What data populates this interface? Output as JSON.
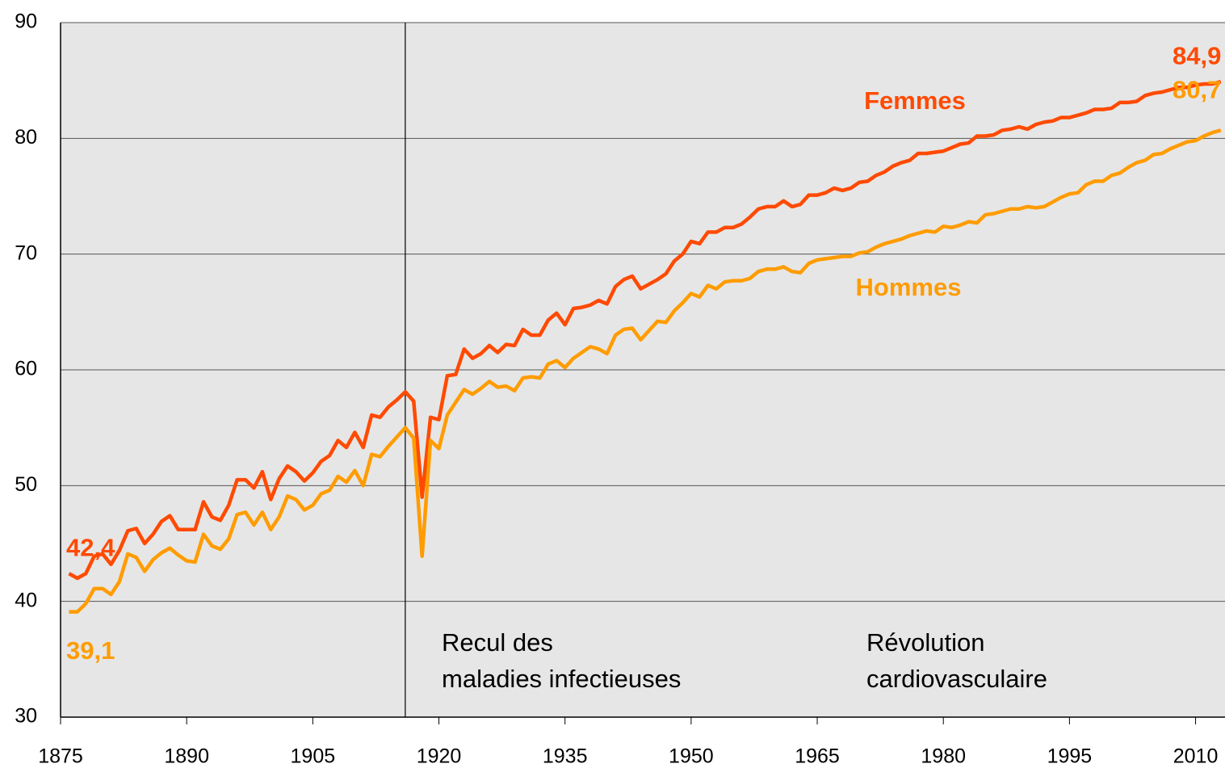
{
  "chart_data": {
    "type": "line",
    "x": [
      1876,
      1877,
      1878,
      1879,
      1880,
      1881,
      1882,
      1883,
      1884,
      1885,
      1886,
      1887,
      1888,
      1889,
      1890,
      1891,
      1892,
      1893,
      1894,
      1895,
      1896,
      1897,
      1898,
      1899,
      1900,
      1901,
      1902,
      1903,
      1904,
      1905,
      1906,
      1907,
      1908,
      1909,
      1910,
      1911,
      1912,
      1913,
      1914,
      1915,
      1916,
      1917,
      1918,
      1919,
      1920,
      1921,
      1922,
      1923,
      1924,
      1925,
      1926,
      1927,
      1928,
      1929,
      1930,
      1931,
      1932,
      1933,
      1934,
      1935,
      1936,
      1937,
      1938,
      1939,
      1940,
      1941,
      1942,
      1943,
      1944,
      1945,
      1946,
      1947,
      1948,
      1949,
      1950,
      1951,
      1952,
      1953,
      1954,
      1955,
      1956,
      1957,
      1958,
      1959,
      1960,
      1961,
      1962,
      1963,
      1964,
      1965,
      1966,
      1967,
      1968,
      1969,
      1970,
      1971,
      1972,
      1973,
      1974,
      1975,
      1976,
      1977,
      1978,
      1979,
      1980,
      1981,
      1982,
      1983,
      1984,
      1985,
      1986,
      1987,
      1988,
      1989,
      1990,
      1991,
      1992,
      1993,
      1994,
      1995,
      1996,
      1997,
      1998,
      1999,
      2000,
      2001,
      2002,
      2003,
      2004,
      2005,
      2006,
      2007,
      2008,
      2009,
      2010,
      2011,
      2012,
      2013
    ],
    "series": [
      {
        "name": "Femmes",
        "color": "#ff4a00",
        "values": [
          42.4,
          42.0,
          42.4,
          43.9,
          44.1,
          43.2,
          44.4,
          46.1,
          46.3,
          45.0,
          45.8,
          46.9,
          47.4,
          46.2,
          46.2,
          46.2,
          48.6,
          47.3,
          47.0,
          48.3,
          50.5,
          50.5,
          49.8,
          51.2,
          48.8,
          50.6,
          51.7,
          51.2,
          50.4,
          51.1,
          52.1,
          52.6,
          53.9,
          53.3,
          54.6,
          53.3,
          56.1,
          55.9,
          56.8,
          57.4,
          58.1,
          57.3,
          49.0,
          55.9,
          55.7,
          59.5,
          59.6,
          61.8,
          61.0,
          61.4,
          62.1,
          61.5,
          62.2,
          62.1,
          63.5,
          63.0,
          63.0,
          64.3,
          64.9,
          63.9,
          65.3,
          65.4,
          65.6,
          66.0,
          65.7,
          67.2,
          67.8,
          68.1,
          67.0,
          67.4,
          67.8,
          68.3,
          69.4,
          70.0,
          71.1,
          70.9,
          71.9,
          71.9,
          72.3,
          72.3,
          72.6,
          73.2,
          73.9,
          74.1,
          74.1,
          74.6,
          74.1,
          74.3,
          75.1,
          75.1,
          75.3,
          75.7,
          75.5,
          75.7,
          76.2,
          76.3,
          76.8,
          77.1,
          77.6,
          77.9,
          78.1,
          78.7,
          78.7,
          78.8,
          78.9,
          79.2,
          79.5,
          79.6,
          80.2,
          80.2,
          80.3,
          80.7,
          80.8,
          81.0,
          80.8,
          81.2,
          81.4,
          81.5,
          81.8,
          81.8,
          82.0,
          82.2,
          82.5,
          82.5,
          82.6,
          83.1,
          83.1,
          83.2,
          83.7,
          83.9,
          84.0,
          84.2,
          84.4,
          84.4,
          84.6,
          84.7,
          84.7,
          84.9
        ],
        "value_labels": [
          "42,4",
          null,
          null,
          null,
          null,
          null,
          null,
          null,
          null,
          null,
          null,
          null,
          null,
          null,
          null,
          null,
          null,
          null,
          null,
          null,
          null,
          null,
          null,
          null,
          null,
          null,
          null,
          null,
          null,
          null,
          null,
          null,
          null,
          null,
          null,
          null,
          null,
          null,
          null,
          null,
          null,
          null,
          null,
          null,
          null,
          null,
          null,
          null,
          null,
          null,
          null,
          null,
          null,
          null,
          null,
          null,
          null,
          null,
          null,
          null,
          null,
          null,
          null,
          null,
          null,
          null,
          null,
          null,
          null,
          null,
          null,
          null,
          null,
          null,
          null,
          null,
          null,
          null,
          null,
          null,
          null,
          null,
          null,
          null,
          null,
          null,
          null,
          null,
          null,
          null,
          null,
          null,
          null,
          null,
          null,
          null,
          null,
          null,
          null,
          null,
          null,
          null,
          null,
          null,
          null,
          null,
          null,
          null,
          null,
          null,
          null,
          null,
          null,
          null,
          null,
          null,
          null,
          null,
          null,
          null,
          null,
          null,
          null,
          null,
          null,
          null,
          null,
          null,
          null,
          null,
          null,
          null,
          null,
          null,
          null,
          null,
          null,
          "84,9"
        ]
      },
      {
        "name": "Hommes",
        "color": "#ff9c00",
        "values": [
          39.1,
          39.1,
          39.8,
          41.1,
          41.1,
          40.6,
          41.7,
          44.1,
          43.8,
          42.6,
          43.6,
          44.2,
          44.6,
          44.0,
          43.5,
          43.4,
          45.8,
          44.8,
          44.5,
          45.4,
          47.5,
          47.7,
          46.6,
          47.7,
          46.2,
          47.3,
          49.1,
          48.8,
          47.9,
          48.3,
          49.3,
          49.6,
          50.8,
          50.3,
          51.3,
          50.0,
          52.7,
          52.5,
          53.4,
          54.2,
          55.0,
          54.1,
          43.9,
          53.9,
          53.2,
          56.1,
          57.2,
          58.3,
          57.9,
          58.4,
          59.0,
          58.5,
          58.6,
          58.2,
          59.3,
          59.4,
          59.3,
          60.5,
          60.8,
          60.2,
          61.0,
          61.5,
          62.0,
          61.8,
          61.4,
          63.0,
          63.5,
          63.6,
          62.6,
          63.4,
          64.2,
          64.1,
          65.1,
          65.8,
          66.6,
          66.3,
          67.3,
          67.0,
          67.6,
          67.7,
          67.7,
          67.9,
          68.5,
          68.7,
          68.7,
          68.9,
          68.5,
          68.4,
          69.2,
          69.5,
          69.6,
          69.7,
          69.8,
          69.8,
          70.1,
          70.2,
          70.6,
          70.9,
          71.1,
          71.3,
          71.6,
          71.8,
          72.0,
          71.9,
          72.4,
          72.3,
          72.5,
          72.8,
          72.7,
          73.4,
          73.5,
          73.7,
          73.9,
          73.9,
          74.1,
          74.0,
          74.1,
          74.5,
          74.9,
          75.2,
          75.3,
          76.0,
          76.3,
          76.3,
          76.8,
          77.0,
          77.5,
          77.9,
          78.1,
          78.6,
          78.7,
          79.1,
          79.4,
          79.7,
          79.8,
          80.2,
          80.5,
          80.7
        ],
        "value_labels": [
          "39,1",
          null,
          null,
          null,
          null,
          null,
          null,
          null,
          null,
          null,
          null,
          null,
          null,
          null,
          null,
          null,
          null,
          null,
          null,
          null,
          null,
          null,
          null,
          null,
          null,
          null,
          null,
          null,
          null,
          null,
          null,
          null,
          null,
          null,
          null,
          null,
          null,
          null,
          null,
          null,
          null,
          null,
          null,
          null,
          null,
          null,
          null,
          null,
          null,
          null,
          null,
          null,
          null,
          null,
          null,
          null,
          null,
          null,
          null,
          null,
          null,
          null,
          null,
          null,
          null,
          null,
          null,
          null,
          null,
          null,
          null,
          null,
          null,
          null,
          null,
          null,
          null,
          null,
          null,
          null,
          null,
          null,
          null,
          null,
          null,
          null,
          null,
          null,
          null,
          null,
          null,
          null,
          null,
          null,
          null,
          null,
          null,
          null,
          null,
          null,
          null,
          null,
          null,
          null,
          null,
          null,
          null,
          null,
          null,
          null,
          null,
          null,
          null,
          null,
          null,
          null,
          null,
          null,
          null,
          null,
          null,
          null,
          null,
          null,
          null,
          null,
          null,
          null,
          null,
          null,
          null,
          null,
          null,
          null,
          null,
          null,
          null,
          "80,7"
        ]
      }
    ],
    "xlim": [
      1875,
      2013.5
    ],
    "xticks": [
      1875,
      1890,
      1905,
      1920,
      1935,
      1950,
      1965,
      1980,
      1995,
      2010
    ],
    "ylim": [
      30,
      90
    ],
    "yticks": [
      30,
      40,
      50,
      60,
      70,
      80,
      90
    ],
    "grid": true,
    "vline": 1916,
    "annotations": [
      {
        "lines": [
          "Recul des",
          "maladies infectieuses"
        ]
      },
      {
        "lines": [
          "Révolution",
          "cardiovasculaire"
        ]
      }
    ]
  }
}
